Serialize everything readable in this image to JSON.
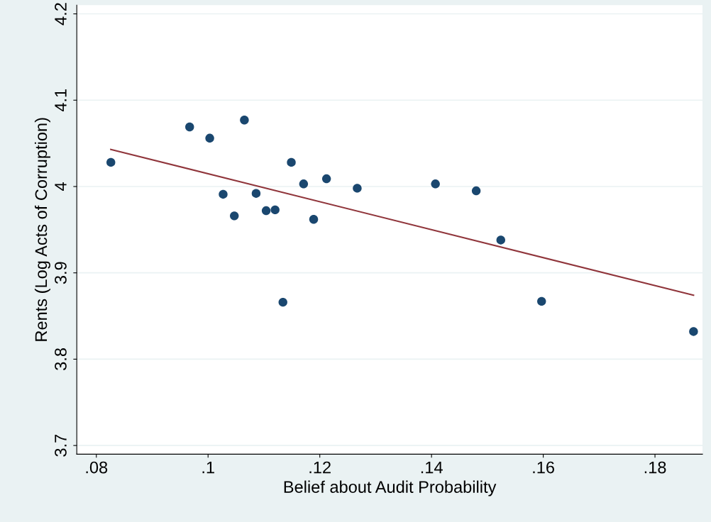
{
  "chart_data": {
    "type": "scatter",
    "xlabel": "Belief about Audit Probability",
    "ylabel": "Rents (Log Acts of Corruption)",
    "xlim": [
      0.0765,
      0.1885
    ],
    "ylim": [
      3.69,
      4.21
    ],
    "xticks": [
      {
        "value": 0.08,
        "label": ".08"
      },
      {
        "value": 0.1,
        "label": ".1"
      },
      {
        "value": 0.12,
        "label": ".12"
      },
      {
        "value": 0.14,
        "label": ".14"
      },
      {
        "value": 0.16,
        "label": ".16"
      },
      {
        "value": 0.18,
        "label": ".18"
      }
    ],
    "yticks": [
      3.7,
      3.8,
      3.9,
      4,
      4.1,
      4.2
    ],
    "grid": "y",
    "series": [
      {
        "marker": "circle",
        "color": "#1a476f",
        "x": [
          0.0826,
          0.0967,
          0.1003,
          0.1065,
          0.1027,
          0.1047,
          0.1086,
          0.1104,
          0.112,
          0.1149,
          0.1171,
          0.1189,
          0.1134,
          0.1212,
          0.1267,
          0.1407,
          0.148,
          0.1524,
          0.1597,
          0.1869
        ],
        "values": [
          4.028,
          4.069,
          4.056,
          4.077,
          3.991,
          3.966,
          3.992,
          3.972,
          3.973,
          4.028,
          4.003,
          3.962,
          3.866,
          4.009,
          3.998,
          4.003,
          3.995,
          3.938,
          3.867,
          3.832
        ]
      },
      {
        "type": "line",
        "marker": "none",
        "color": "#90353b",
        "x": [
          0.0826,
          0.1869
        ],
        "values": [
          4.043,
          3.874
        ]
      }
    ]
  }
}
